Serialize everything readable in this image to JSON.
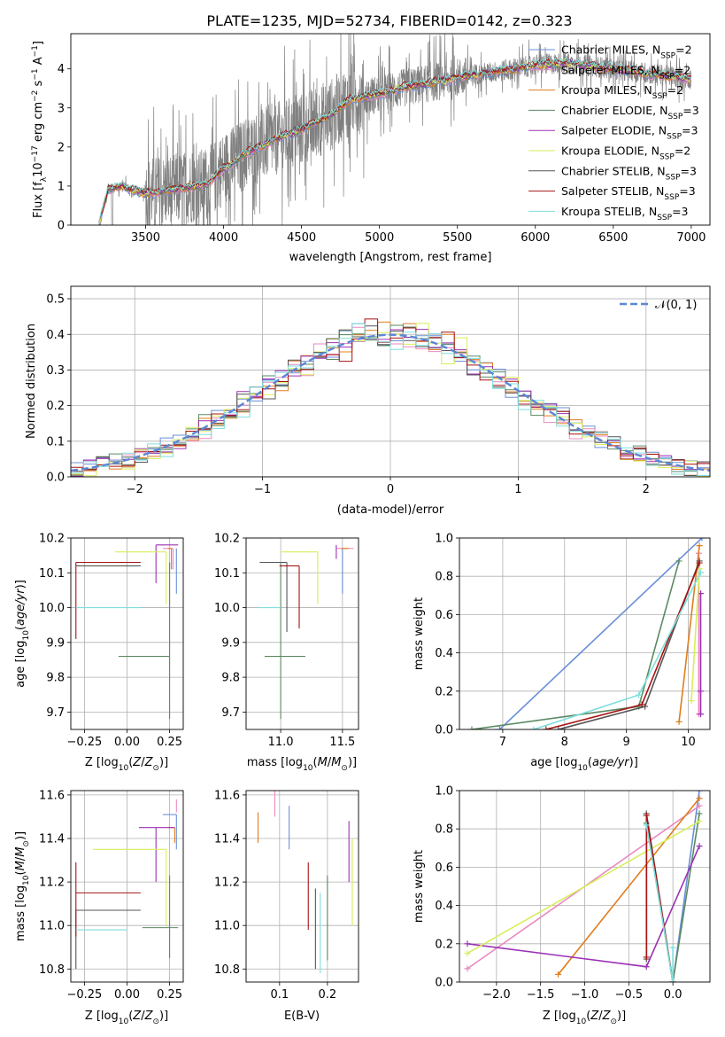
{
  "figure": {
    "title": "PLATE=1235, MJD=52734, FIBERID=0142, z=0.323"
  },
  "colors": {
    "chabrier_miles": "#6a8fd8",
    "salpeter_miles": "#e88ac0",
    "kroupa_miles": "#e07d1f",
    "chabrier_elodie": "#5a8a63",
    "salpeter_elodie": "#9b30b5",
    "kroupa_elodie": "#d8ee5a",
    "chabrier_stelib": "#555555",
    "salpeter_stelib": "#a61414",
    "kroupa_stelib": "#7fdedd",
    "data": "#808080",
    "gaussian": "#5b87d6"
  },
  "legend_entries": [
    {
      "name": "Chabrier MILES",
      "n": "2",
      "color": "#6a8fd8"
    },
    {
      "name": "Salpeter MILES",
      "n": "2",
      "color": "#e88ac0"
    },
    {
      "name": "Kroupa MILES",
      "n": "2",
      "color": "#e07d1f"
    },
    {
      "name": "Chabrier ELODIE",
      "n": "3",
      "color": "#5a8a63"
    },
    {
      "name": "Salpeter ELODIE",
      "n": "3",
      "color": "#9b30b5"
    },
    {
      "name": "Kroupa ELODIE",
      "n": "2",
      "color": "#d8ee5a"
    },
    {
      "name": "Chabrier STELIB",
      "n": "3",
      "color": "#555555"
    },
    {
      "name": "Salpeter STELIB",
      "n": "3",
      "color": "#a61414"
    },
    {
      "name": "Kroupa STELIB",
      "n": "3",
      "color": "#7fdedd"
    }
  ],
  "legend_nssp_label": "N",
  "legend_nssp_sub": "SSP",
  "chart_data": [
    {
      "id": "spectrum",
      "type": "line",
      "xlabel": "wavelength [Angstrom, rest frame]",
      "ylabel_parts": [
        "Flux [f",
        "λ",
        "10",
        "−17",
        " erg cm",
        "−2",
        " s",
        "−1",
        " A",
        "−1",
        "]"
      ],
      "xlim": [
        3020,
        7120
      ],
      "ylim": [
        0,
        4.9
      ],
      "xticks": [
        3500,
        4000,
        4500,
        5000,
        5500,
        6000,
        6500,
        7000
      ],
      "yticks": [
        0,
        1,
        2,
        3,
        4
      ],
      "data_range": [
        3200,
        7000
      ],
      "model_anchors": {
        "x": [
          3200,
          3260,
          3350,
          3500,
          3700,
          3900,
          4000,
          4150,
          4300,
          4500,
          4700,
          4800,
          4900,
          5000,
          5200,
          5400,
          5600,
          5800,
          6000,
          6200,
          6400,
          6600,
          6800,
          7000
        ],
        "y": [
          0,
          0.92,
          1.0,
          0.8,
          0.92,
          1.05,
          1.45,
          1.85,
          2.15,
          2.45,
          2.85,
          3.2,
          3.3,
          3.35,
          3.55,
          3.7,
          3.85,
          3.95,
          4.1,
          4.15,
          4.05,
          3.95,
          3.85,
          3.75
        ]
      }
    },
    {
      "id": "residuals",
      "type": "histogram",
      "xlabel": "(data-model)/error",
      "ylabel": "Normed distribution",
      "xlim": [
        -2.5,
        2.5
      ],
      "ylim": [
        0,
        0.535
      ],
      "xticks": [
        -2,
        -1,
        0,
        1,
        2
      ],
      "yticks": [
        0,
        0.1,
        0.2,
        0.3,
        0.4,
        0.5
      ],
      "bin_width": 0.1,
      "gaussian_label": "𝒩(0, 1)",
      "grid": true
    },
    {
      "id": "age_vs_z",
      "type": "scatter",
      "xlabel": "Z [log10(Z/Z⊙)]",
      "ylabel": "age  [log10(age/yr)]",
      "xlim": [
        -0.33,
        0.33
      ],
      "ylim": [
        9.65,
        10.2
      ],
      "xticks": [
        -0.25,
        0.0,
        0.25
      ],
      "yticks": [
        9.7,
        9.8,
        9.9,
        10.0,
        10.1,
        10.2
      ],
      "series": [
        {
          "color": "#6a8fd8",
          "x": 0.29,
          "y": 10.17,
          "xerr": [
            0.0,
            0.0
          ],
          "yerr": [
            0.13,
            0.0
          ]
        },
        {
          "color": "#e88ac0",
          "x": 0.27,
          "y": 10.17,
          "xerr": [
            0.06,
            0.0
          ],
          "yerr": [
            0.06,
            0.0
          ]
        },
        {
          "color": "#e07d1f",
          "x": 0.26,
          "y": 10.17,
          "xerr": [
            0.02,
            0.0
          ],
          "yerr": [
            0.06,
            0.0
          ]
        },
        {
          "color": "#5a8a63",
          "x": 0.25,
          "y": 9.86,
          "xerr": [
            0.3,
            0.0
          ],
          "yerr": [
            0.18,
            0.27
          ]
        },
        {
          "color": "#9b30b5",
          "x": 0.17,
          "y": 10.18,
          "xerr": [
            0.0,
            0.13
          ],
          "yerr": [
            0.11,
            0.0
          ]
        },
        {
          "color": "#d8ee5a",
          "x": 0.23,
          "y": 10.16,
          "xerr": [
            0.3,
            0.0
          ],
          "yerr": [
            0.15,
            0.0
          ]
        },
        {
          "color": "#555555",
          "x": -0.3,
          "y": 10.12,
          "xerr": [
            0.0,
            0.38
          ],
          "yerr": [
            0.0,
            0.0
          ]
        },
        {
          "color": "#a61414",
          "x": -0.3,
          "y": 10.13,
          "xerr": [
            0.0,
            0.38
          ],
          "yerr": [
            0.22,
            0.0
          ]
        },
        {
          "color": "#7fdedd",
          "x": -0.3,
          "y": 10.0,
          "xerr": [
            0.0,
            0.38
          ],
          "yerr": [
            0.0,
            0.0
          ]
        }
      ]
    },
    {
      "id": "age_vs_mass",
      "type": "scatter",
      "xlabel": "mass [log10(M/M⊙)]",
      "ylabel": "",
      "xlim": [
        10.72,
        11.63
      ],
      "ylim": [
        9.65,
        10.2
      ],
      "xticks": [
        11.0,
        11.5
      ],
      "yticks": [
        9.7,
        9.8,
        9.9,
        10.0,
        10.1,
        10.2
      ],
      "series": [
        {
          "color": "#6a8fd8",
          "x": 11.5,
          "y": 10.17,
          "xerr": [
            0.0,
            0.0
          ],
          "yerr": [
            0.13,
            0.0
          ]
        },
        {
          "color": "#e88ac0",
          "x": 11.52,
          "y": 10.17,
          "xerr": [
            0.07,
            0.07
          ],
          "yerr": [
            0.0,
            0.0
          ]
        },
        {
          "color": "#e07d1f",
          "x": 11.52,
          "y": 10.17,
          "xerr": [
            0.03,
            0.03
          ],
          "yerr": [
            0.0,
            0.0
          ]
        },
        {
          "color": "#5a8a63",
          "x": 11.0,
          "y": 9.86,
          "xerr": [
            0.13,
            0.2
          ],
          "yerr": [
            0.18,
            0.27
          ]
        },
        {
          "color": "#9b30b5",
          "x": 11.45,
          "y": 10.18,
          "xerr": [
            0.0,
            0.0
          ],
          "yerr": [
            0.04,
            0.0
          ]
        },
        {
          "color": "#d8ee5a",
          "x": 11.3,
          "y": 10.16,
          "xerr": [
            0.3,
            0.0
          ],
          "yerr": [
            0.15,
            0.0
          ]
        },
        {
          "color": "#555555",
          "x": 11.05,
          "y": 10.13,
          "xerr": [
            0.22,
            0.0
          ],
          "yerr": [
            0.2,
            0.0
          ]
        },
        {
          "color": "#a61414",
          "x": 11.15,
          "y": 10.12,
          "xerr": [
            0.16,
            0.0
          ],
          "yerr": [
            0.18,
            0.0
          ]
        },
        {
          "color": "#7fdedd",
          "x": 11.0,
          "y": 10.0,
          "xerr": [
            0.18,
            0.0
          ],
          "yerr": [
            0.0,
            0.0
          ]
        }
      ]
    },
    {
      "id": "weight_vs_age",
      "type": "line",
      "xlabel": "age  [log10(age/yr)]",
      "ylabel": "mass weight",
      "xlim": [
        6.3,
        10.35
      ],
      "ylim": [
        0,
        1.0
      ],
      "xticks": [
        7,
        8,
        9,
        10
      ],
      "yticks": [
        0,
        0.2,
        0.4,
        0.6,
        0.8,
        1.0
      ],
      "series": [
        {
          "color": "#6a8fd8",
          "x": [
            6.95,
            10.22
          ],
          "y": [
            0.0,
            1.0
          ]
        },
        {
          "color": "#e88ac0",
          "x": [
            10.17,
            10.17
          ],
          "y": [
            0.08,
            0.92
          ]
        },
        {
          "color": "#e07d1f",
          "x": [
            9.85,
            10.18
          ],
          "y": [
            0.04,
            0.96
          ]
        },
        {
          "color": "#5a8a63",
          "x": [
            6.5,
            9.2,
            9.85
          ],
          "y": [
            0.0,
            0.12,
            0.88
          ]
        },
        {
          "color": "#9b30b5",
          "x": [
            10.2,
            10.2,
            10.2
          ],
          "y": [
            0.08,
            0.2,
            0.71
          ]
        },
        {
          "color": "#d8ee5a",
          "x": [
            10.05,
            10.18
          ],
          "y": [
            0.15,
            0.84
          ]
        },
        {
          "color": "#555555",
          "x": [
            7.9,
            9.3,
            10.18
          ],
          "y": [
            0.0,
            0.12,
            0.88
          ]
        },
        {
          "color": "#a61414",
          "x": [
            7.7,
            9.25,
            10.18
          ],
          "y": [
            0.0,
            0.13,
            0.87
          ]
        },
        {
          "color": "#7fdedd",
          "x": [
            7.5,
            9.2,
            10.2
          ],
          "y": [
            0.0,
            0.18,
            0.82
          ]
        }
      ]
    },
    {
      "id": "mass_vs_z",
      "type": "scatter",
      "xlabel": "Z [log10(Z/Z⊙)]",
      "ylabel": "mass [log10(M/M⊙)]",
      "xlim": [
        -0.33,
        0.33
      ],
      "ylim": [
        10.74,
        11.62
      ],
      "xticks": [
        -0.25,
        0.0,
        0.25
      ],
      "yticks": [
        10.8,
        11.0,
        11.2,
        11.4,
        11.6
      ],
      "series": [
        {
          "color": "#6a8fd8",
          "x": 0.29,
          "y": 11.51,
          "xerr": [
            0.08,
            0.0
          ],
          "yerr": [
            0.16,
            0.0
          ]
        },
        {
          "color": "#e88ac0",
          "x": 0.29,
          "y": 11.58,
          "xerr": [
            0.0,
            0.0
          ],
          "yerr": [
            0.06,
            0.0
          ]
        },
        {
          "color": "#e07d1f",
          "x": 0.28,
          "y": 11.45,
          "xerr": [
            0.04,
            0.0
          ],
          "yerr": [
            0.07,
            0.0
          ]
        },
        {
          "color": "#5a8a63",
          "x": 0.25,
          "y": 10.99,
          "xerr": [
            0.16,
            0.05
          ],
          "yerr": [
            0.14,
            0.24
          ]
        },
        {
          "color": "#9b30b5",
          "x": 0.17,
          "y": 11.45,
          "xerr": [
            0.1,
            0.11
          ],
          "yerr": [
            0.25,
            0.0
          ]
        },
        {
          "color": "#d8ee5a",
          "x": 0.23,
          "y": 11.35,
          "xerr": [
            0.43,
            0.0
          ],
          "yerr": [
            0.35,
            0.0
          ]
        },
        {
          "color": "#555555",
          "x": -0.3,
          "y": 11.07,
          "xerr": [
            0.0,
            0.38
          ],
          "yerr": [
            0.27,
            0.0
          ]
        },
        {
          "color": "#a61414",
          "x": -0.3,
          "y": 11.15,
          "xerr": [
            0.0,
            0.38
          ],
          "yerr": [
            0.2,
            0.14
          ]
        },
        {
          "color": "#7fdedd",
          "x": -0.3,
          "y": 10.98,
          "xerr": [
            0.0,
            0.3
          ],
          "yerr": [
            0.0,
            0.0
          ]
        }
      ]
    },
    {
      "id": "mass_vs_ebv",
      "type": "scatter",
      "xlabel": "E(B-V)",
      "ylabel": "",
      "xlim": [
        0.03,
        0.265
      ],
      "ylim": [
        10.74,
        11.62
      ],
      "xticks": [
        0.1,
        0.2
      ],
      "yticks": [
        10.8,
        11.0,
        11.2,
        11.4,
        11.6
      ],
      "series": [
        {
          "color": "#6a8fd8",
          "x": 0.12,
          "y": 11.45,
          "xerr": [
            0.0,
            0.0
          ],
          "yerr": [
            0.1,
            0.1
          ]
        },
        {
          "color": "#e88ac0",
          "x": 0.09,
          "y": 11.58,
          "xerr": [
            0.0,
            0.0
          ],
          "yerr": [
            0.08,
            0.08
          ]
        },
        {
          "color": "#e07d1f",
          "x": 0.055,
          "y": 11.45,
          "xerr": [
            0.0,
            0.0
          ],
          "yerr": [
            0.07,
            0.07
          ]
        },
        {
          "color": "#5a8a63",
          "x": 0.2,
          "y": 11.0,
          "xerr": [
            0.0,
            0.0
          ],
          "yerr": [
            0.16,
            0.23
          ]
        },
        {
          "color": "#9b30b5",
          "x": 0.245,
          "y": 11.36,
          "xerr": [
            0.0,
            0.0
          ],
          "yerr": [
            0.16,
            0.12
          ]
        },
        {
          "color": "#d8ee5a",
          "x": 0.252,
          "y": 11.2,
          "xerr": [
            0.0,
            0.0
          ],
          "yerr": [
            0.2,
            0.2
          ]
        },
        {
          "color": "#555555",
          "x": 0.175,
          "y": 11.0,
          "xerr": [
            0.0,
            0.0
          ],
          "yerr": [
            0.2,
            0.17
          ]
        },
        {
          "color": "#a61414",
          "x": 0.16,
          "y": 11.15,
          "xerr": [
            0.0,
            0.0
          ],
          "yerr": [
            0.17,
            0.14
          ]
        },
        {
          "color": "#7fdedd",
          "x": 0.185,
          "y": 10.98,
          "xerr": [
            0.0,
            0.0
          ],
          "yerr": [
            0.2,
            0.17
          ]
        }
      ]
    },
    {
      "id": "weight_vs_z",
      "type": "line",
      "xlabel": "Z [log10(Z/Z⊙)]",
      "ylabel": "mass weight",
      "xlim": [
        -2.42,
        0.42
      ],
      "ylim": [
        0,
        1.0
      ],
      "xticks": [
        -2.0,
        -1.5,
        -1.0,
        -0.5,
        0.0
      ],
      "yticks": [
        0,
        0.2,
        0.4,
        0.6,
        0.8,
        1.0
      ],
      "series": [
        {
          "color": "#6a8fd8",
          "x": [
            0.0,
            0.3
          ],
          "y": [
            0.0,
            1.0
          ]
        },
        {
          "color": "#e88ac0",
          "x": [
            -2.33,
            0.3
          ],
          "y": [
            0.07,
            0.92
          ]
        },
        {
          "color": "#e07d1f",
          "x": [
            -1.3,
            0.3
          ],
          "y": [
            0.04,
            0.96
          ]
        },
        {
          "color": "#5a8a63",
          "x": [
            -0.3,
            0.0,
            0.3
          ],
          "y": [
            0.83,
            0.0,
            0.88
          ]
        },
        {
          "color": "#9b30b5",
          "x": [
            -2.33,
            -0.3,
            0.3
          ],
          "y": [
            0.2,
            0.08,
            0.71
          ]
        },
        {
          "color": "#d8ee5a",
          "x": [
            -2.33,
            0.3
          ],
          "y": [
            0.15,
            0.84
          ]
        },
        {
          "color": "#555555",
          "x": [
            -0.3,
            -0.3,
            0.0
          ],
          "y": [
            0.12,
            0.88,
            0.0
          ]
        },
        {
          "color": "#a61414",
          "x": [
            -0.3,
            -0.3,
            0.0
          ],
          "y": [
            0.13,
            0.87,
            0.0
          ]
        },
        {
          "color": "#7fdedd",
          "x": [
            -0.3,
            0.0,
            0.0
          ],
          "y": [
            0.82,
            0.0,
            0.18
          ]
        }
      ]
    }
  ]
}
